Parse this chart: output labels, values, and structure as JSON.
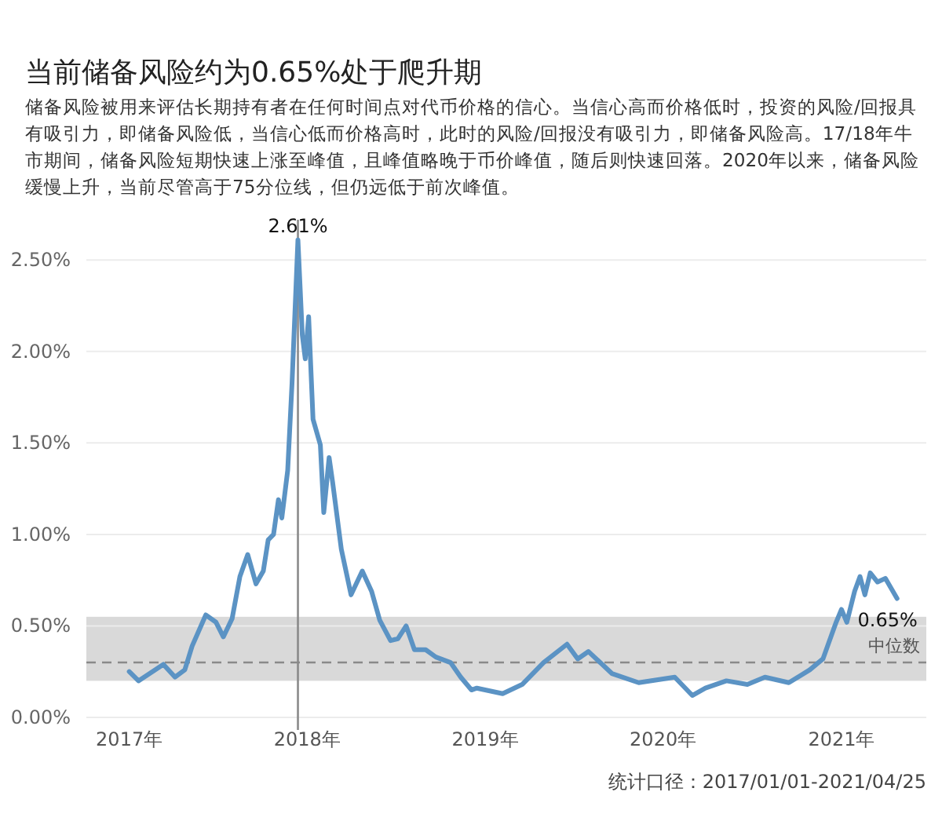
{
  "chart_data": {
    "type": "line",
    "title": "当前储备风险约为0.65%处于爬升期",
    "subtitle": "储备风险被用来评估长期持有者在任何时间点对代币价格的信心。当信心高而价格低时，投资的风险/回报具有吸引力，即储备风险低，当信心低而价格高时，此时的风险/回报没有吸引力，即储备风险高。17/18年牛市期间，储备风险短期快速上涨至峰值，且峰值略晚于币价峰值，随后则快速回落。2020年以来，储备风险缓慢上升，当前尽管高于75分位线，但仍远低于前次峰值。",
    "series": [
      {
        "color": "#5b93c4",
        "x": [
          "2017-01-01",
          "2017-01-20",
          "2017-03-12",
          "2017-04-05",
          "2017-04-25",
          "2017-05-10",
          "2017-06-07",
          "2017-06-28",
          "2017-07-13",
          "2017-07-31",
          "2017-08-16",
          "2017-09-01",
          "2017-09-18",
          "2017-10-03",
          "2017-10-13",
          "2017-10-24",
          "2017-11-03",
          "2017-11-10",
          "2017-11-22",
          "2017-12-01",
          "2017-12-13",
          "2017-12-22",
          "2017-12-28",
          "2018-01-04",
          "2018-01-13",
          "2018-01-28",
          "2018-02-04",
          "2018-02-15",
          "2018-02-22",
          "2018-03-12",
          "2018-04-01",
          "2018-04-24",
          "2018-05-13",
          "2018-05-30",
          "2018-06-21",
          "2018-07-06",
          "2018-07-23",
          "2018-08-09",
          "2018-09-01",
          "2018-09-22",
          "2018-10-22",
          "2018-11-12",
          "2018-12-04",
          "2018-12-15",
          "2019-02-06",
          "2019-03-18",
          "2019-05-01",
          "2019-06-18",
          "2019-07-10",
          "2019-08-01",
          "2019-09-18",
          "2019-11-12",
          "2020-01-25",
          "2020-03-01",
          "2020-03-28",
          "2020-05-10",
          "2020-06-22",
          "2020-07-28",
          "2020-09-15",
          "2020-10-28",
          "2020-11-24",
          "2020-12-21",
          "2021-01-01",
          "2021-01-12",
          "2021-01-28",
          "2021-02-08",
          "2021-02-18",
          "2021-03-01",
          "2021-03-16",
          "2021-04-01",
          "2021-04-25"
        ],
        "values": [
          0.25,
          0.2,
          0.29,
          0.22,
          0.26,
          0.39,
          0.56,
          0.52,
          0.44,
          0.54,
          0.77,
          0.89,
          0.73,
          0.8,
          0.97,
          1.0,
          1.19,
          1.09,
          1.35,
          1.83,
          2.61,
          2.09,
          1.96,
          2.19,
          1.63,
          1.49,
          1.12,
          1.42,
          1.29,
          0.92,
          0.67,
          0.8,
          0.69,
          0.53,
          0.42,
          0.43,
          0.5,
          0.37,
          0.37,
          0.33,
          0.3,
          0.22,
          0.15,
          0.16,
          0.13,
          0.18,
          0.3,
          0.4,
          0.32,
          0.36,
          0.24,
          0.19,
          0.22,
          0.12,
          0.16,
          0.2,
          0.18,
          0.22,
          0.19,
          0.26,
          0.32,
          0.52,
          0.59,
          0.52,
          0.69,
          0.77,
          0.67,
          0.79,
          0.74,
          0.76,
          0.65
        ]
      }
    ],
    "xlim": [
      "2016-10-05",
      "2021-06-24"
    ],
    "xticks": [
      {
        "value": "2017-01-01",
        "label": "2017年"
      },
      {
        "value": "2018-01-01",
        "label": "2018年"
      },
      {
        "value": "2019-01-01",
        "label": "2019年"
      },
      {
        "value": "2020-01-01",
        "label": "2020年"
      },
      {
        "value": "2021-01-01",
        "label": "2021年"
      }
    ],
    "ylim": [
      0,
      2.72
    ],
    "yticks": [
      {
        "value": 0,
        "label": "0.00%"
      },
      {
        "value": 0.5,
        "label": "0.50%"
      },
      {
        "value": 1,
        "label": "1.00%"
      },
      {
        "value": 1.5,
        "label": "1.50%"
      },
      {
        "value": 2,
        "label": "2.00%"
      },
      {
        "value": 2.5,
        "label": "2.50%"
      }
    ],
    "grid": "y",
    "line_style": "solid",
    "bands": [
      {
        "axis": "y",
        "from": 0.2,
        "to": 0.55,
        "color": "#d9d9d9"
      }
    ],
    "ref_lines": [
      {
        "axis": "y",
        "value": 0.3,
        "label": "中位数",
        "line_style": "dashed",
        "color": "#8a8a8a"
      },
      {
        "axis": "x",
        "value": "2017-12-13",
        "color": "#8a8a8a",
        "line_style": "solid"
      }
    ],
    "annotations": [
      {
        "text": "2.61%",
        "x": "2017-12-13",
        "y": 2.61
      },
      {
        "text": "0.65%",
        "x": "2021-04-25",
        "y": 0.65
      },
      "统计口径：2017/01/01-2021/04/25"
    ]
  }
}
